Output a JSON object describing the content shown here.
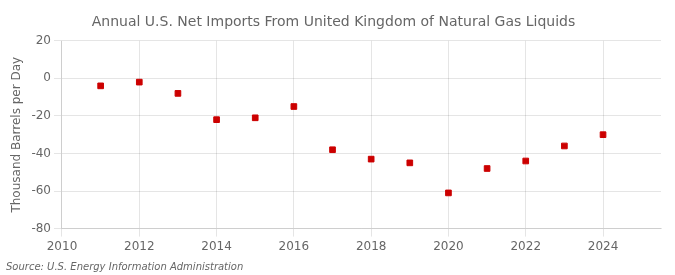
{
  "chart_data": {
    "type": "scatter",
    "title": "Annual U.S. Net Imports From United Kingdom of Natural Gas Liquids",
    "ylabel": "Thousand Barrels per Day",
    "source": "Source: U.S. Energy Information Administration",
    "x": [
      2011,
      2012,
      2013,
      2014,
      2015,
      2016,
      2017,
      2018,
      2019,
      2020,
      2021,
      2022,
      2023,
      2024
    ],
    "values": [
      -4,
      -2,
      -8,
      -22,
      -21,
      -15,
      -38,
      -43,
      -45,
      -61,
      -48,
      -44,
      -36,
      -30
    ],
    "color": "#cc0000",
    "marker": "square",
    "xlim": [
      2010,
      2025.5
    ],
    "ylim": [
      -80,
      20
    ],
    "xticks": [
      2010,
      2012,
      2014,
      2016,
      2018,
      2020,
      2022,
      2024
    ],
    "yticks": [
      -80,
      -60,
      -40,
      -20,
      0,
      20
    ],
    "grid": true
  }
}
